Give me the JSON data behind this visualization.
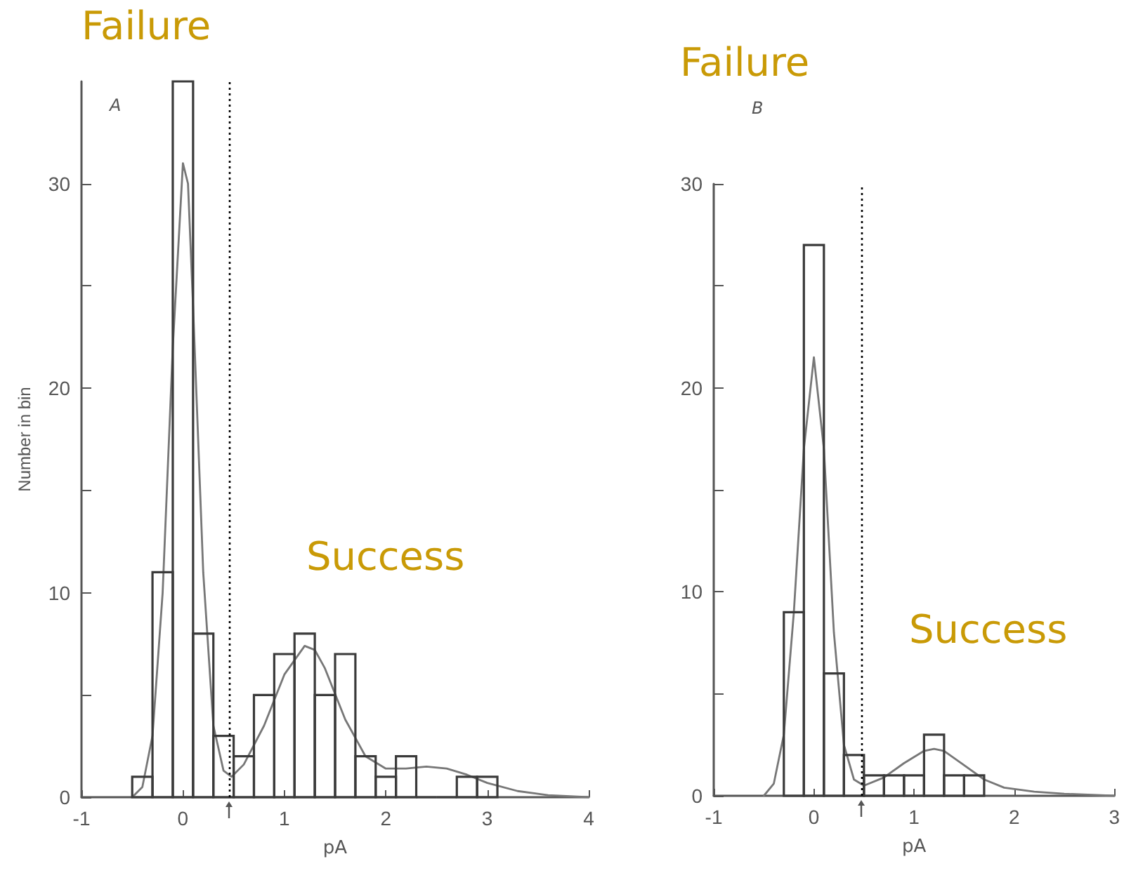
{
  "chart_data": [
    {
      "type": "histogram",
      "xlabel": "pA",
      "ylabel": "Number in bin",
      "annotations": [
        "A",
        "Failure",
        "Success"
      ],
      "xlim": [
        -1,
        4
      ],
      "ylim": [
        0,
        35
      ],
      "xticks": [
        -1,
        0,
        1,
        2,
        3,
        4
      ],
      "yticks": [
        0,
        {
          "value": 5,
          "label": null
        },
        10,
        {
          "value": 15,
          "label": null
        },
        20,
        {
          "value": 25,
          "label": null
        },
        30
      ],
      "grid": false,
      "ref_lines": [
        {
          "axis": "x",
          "value": 0.46,
          "line_style": "dotted",
          "color": "#000000"
        }
      ],
      "series": [
        {
          "type": "histogram",
          "color": "#3a3a3a",
          "bins": [
            -0.5,
            -0.3,
            -0.1,
            0.1,
            0.3,
            0.5,
            0.7,
            0.9,
            1.1,
            1.3,
            1.5,
            1.7,
            1.9,
            2.1,
            2.3,
            2.5,
            2.7,
            2.9,
            3.1
          ],
          "values": [
            1,
            11,
            35,
            8,
            3,
            2,
            5,
            7,
            8,
            5,
            7,
            2,
            1,
            2,
            0,
            0,
            1,
            1
          ]
        },
        {
          "type": "line",
          "color": "#777777",
          "x": [
            -0.5,
            -0.4,
            -0.3,
            -0.2,
            -0.1,
            0,
            0.05,
            0.1,
            0.2,
            0.3,
            0.4,
            0.48,
            0.6,
            0.8,
            1.0,
            1.2,
            1.3,
            1.4,
            1.6,
            1.8,
            2.0,
            2.2,
            2.4,
            2.6,
            2.8,
            3.0,
            3.3,
            3.6,
            4.0
          ],
          "values": [
            0,
            0.5,
            3,
            10,
            22,
            31,
            30,
            24,
            11,
            3.5,
            1.3,
            1,
            1.6,
            3.5,
            6,
            7.4,
            7.2,
            6.3,
            3.8,
            2,
            1.4,
            1.4,
            1.5,
            1.4,
            1.1,
            0.7,
            0.3,
            0.1,
            0
          ]
        }
      ]
    },
    {
      "type": "histogram",
      "xlabel": "pA",
      "annotations": [
        "B",
        "Failure",
        "Success"
      ],
      "xlim": [
        -1,
        3
      ],
      "ylim": [
        0,
        30
      ],
      "xticks": [
        -1,
        0,
        1,
        2,
        3
      ],
      "yticks": [
        0,
        {
          "value": 5,
          "label": null
        },
        10,
        {
          "value": 15,
          "label": null
        },
        20,
        {
          "value": 25,
          "label": null
        },
        30
      ],
      "grid": false,
      "ref_lines": [
        {
          "axis": "x",
          "value": 0.47,
          "line_style": "dotted",
          "color": "#000000"
        }
      ],
      "series": [
        {
          "type": "histogram",
          "color": "#3a3a3a",
          "bins": [
            -0.3,
            -0.1,
            0.1,
            0.3,
            0.5,
            0.7,
            0.9,
            1.1,
            1.3,
            1.5,
            1.7
          ],
          "values": [
            9,
            27,
            6,
            2,
            1,
            1,
            1,
            3,
            1,
            1
          ]
        },
        {
          "type": "line",
          "color": "#777777",
          "x": [
            -0.5,
            -0.4,
            -0.3,
            -0.2,
            -0.1,
            0,
            0.1,
            0.2,
            0.3,
            0.4,
            0.5,
            0.7,
            0.9,
            1.1,
            1.2,
            1.3,
            1.5,
            1.7,
            1.9,
            2.2,
            2.5,
            3.0
          ],
          "values": [
            0,
            0.6,
            3,
            9,
            17,
            21.5,
            17,
            8,
            2.5,
            0.8,
            0.5,
            0.9,
            1.6,
            2.2,
            2.3,
            2.2,
            1.5,
            0.8,
            0.4,
            0.2,
            0.1,
            0
          ]
        }
      ]
    }
  ]
}
